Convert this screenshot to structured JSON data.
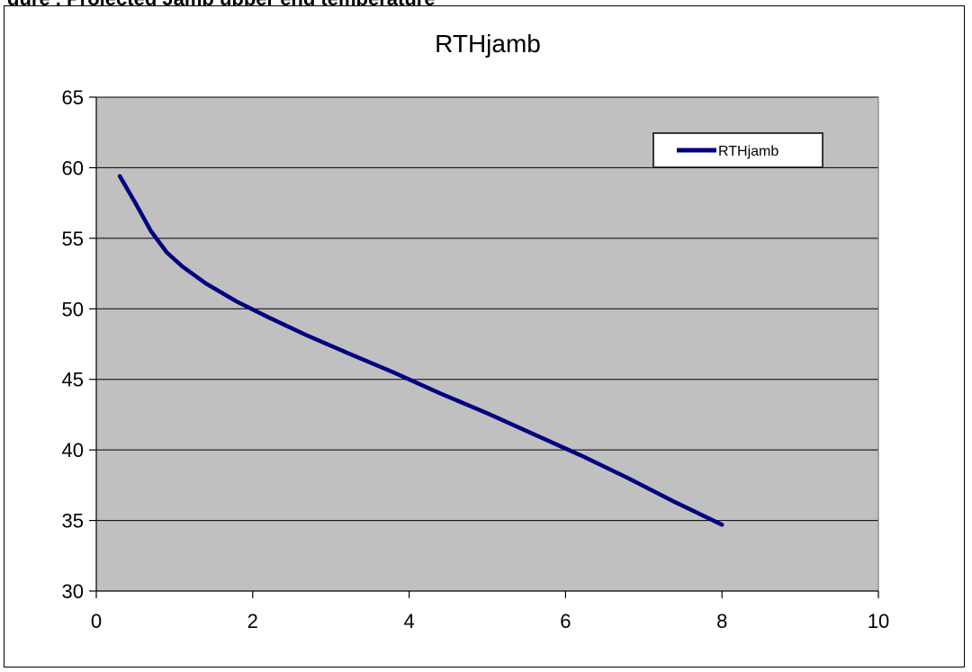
{
  "page_caption": "gure . Projected Jamb upper end temperature",
  "chart_data": {
    "type": "line",
    "title": "RTHjamb",
    "xlabel": "",
    "ylabel": "",
    "xlim": [
      0,
      10
    ],
    "ylim": [
      30,
      65
    ],
    "xticks": [
      0,
      2,
      4,
      6,
      8,
      10
    ],
    "yticks": [
      30,
      35,
      40,
      45,
      50,
      55,
      60,
      65
    ],
    "grid": "horizontal",
    "legend_position": "top-right",
    "plot_background": "#C0C0C0",
    "series": [
      {
        "name": "RTHjamb",
        "color": "#000080",
        "x": [
          0.3,
          0.5,
          0.7,
          0.9,
          1.1,
          1.4,
          1.8,
          2.2,
          2.7,
          3.2,
          3.8,
          4.4,
          5.0,
          5.6,
          6.2,
          6.8,
          7.4,
          8.0
        ],
        "y": [
          59.4,
          57.5,
          55.5,
          54.0,
          53.0,
          51.8,
          50.5,
          49.4,
          48.1,
          46.9,
          45.5,
          44.0,
          42.6,
          41.1,
          39.6,
          38.0,
          36.3,
          34.7
        ]
      }
    ]
  }
}
